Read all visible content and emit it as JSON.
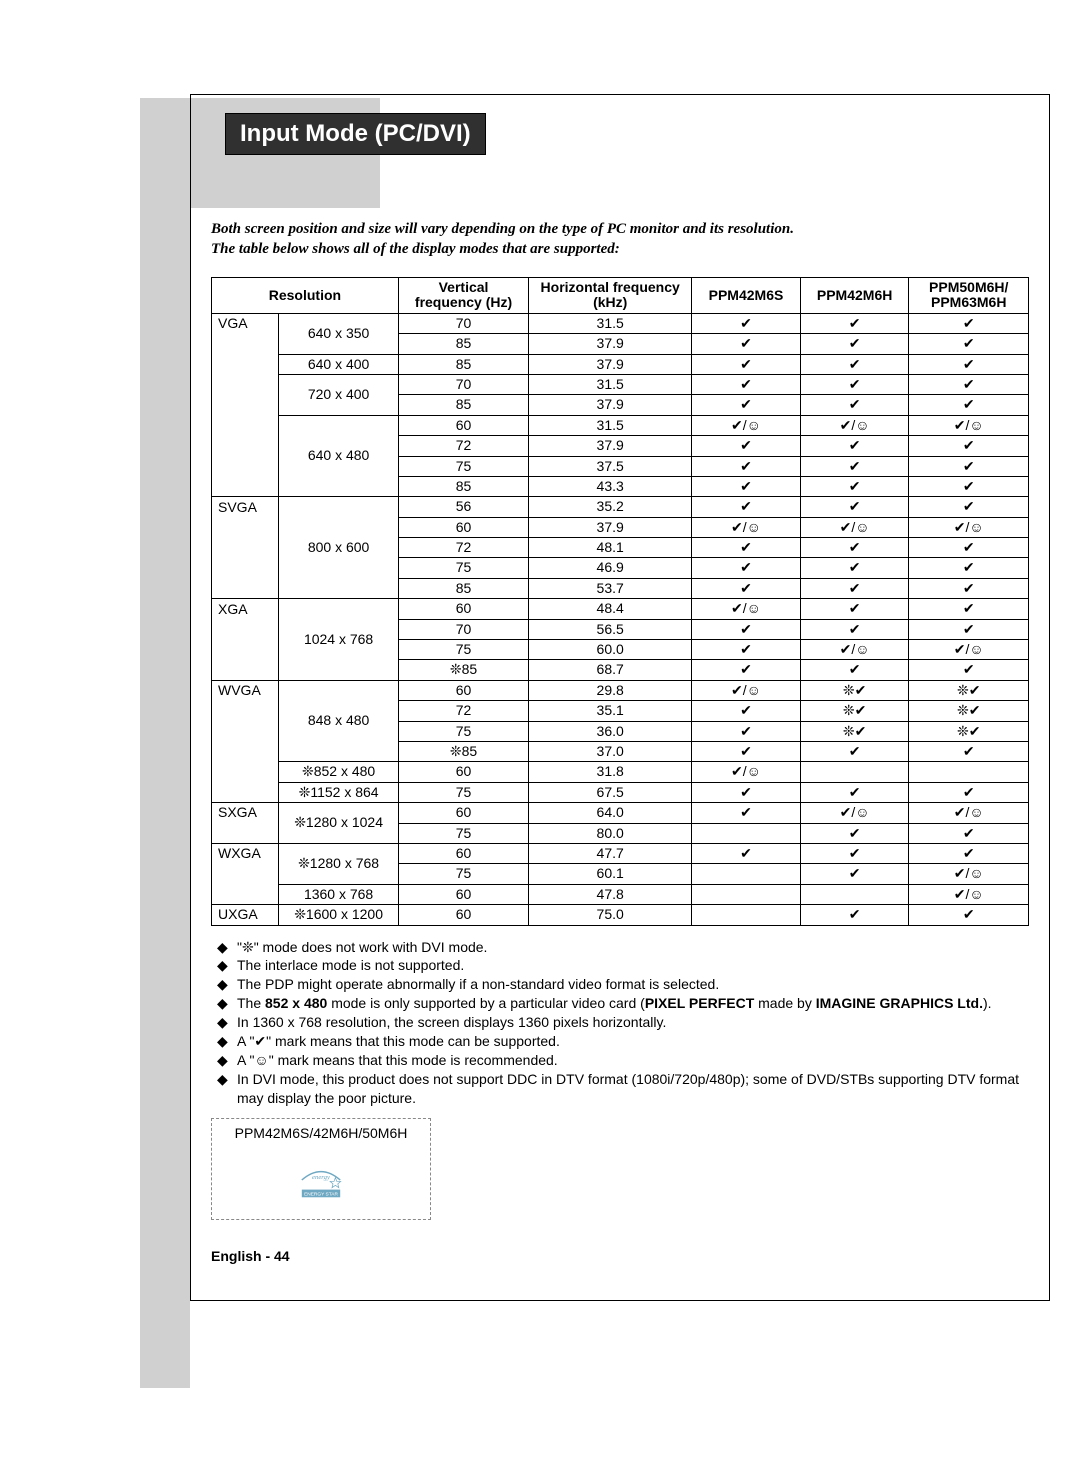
{
  "title": "Input Mode (PC/DVI)",
  "intro_l1": "Both screen position and size will vary depending on the type of PC monitor and its resolution.",
  "intro_l2": "The table below shows all of the display modes that are supported:",
  "headers": {
    "res": "Resolution",
    "vfreq": "Vertical frequency (Hz)",
    "hfreq": "Horizontal frequency (kHz)",
    "m1": "PPM42M6S",
    "m2": "PPM42M6H",
    "m3a": "PPM50M6H/",
    "m3b": "PPM63M6H"
  },
  "groups": [
    {
      "label": "VGA",
      "res": "640 x 350",
      "rows": [
        {
          "v": "70",
          "h": "31.5",
          "a": "c",
          "b": "c",
          "c": "c"
        },
        {
          "v": "85",
          "h": "37.9",
          "a": "c",
          "b": "c",
          "c": "c"
        }
      ]
    },
    {
      "label": "",
      "res": "640 x 400",
      "rows": [
        {
          "v": "85",
          "h": "37.9",
          "a": "c",
          "b": "c",
          "c": "c"
        }
      ]
    },
    {
      "label": "",
      "res": "720 x 400",
      "rows": [
        {
          "v": "70",
          "h": "31.5",
          "a": "c",
          "b": "c",
          "c": "c"
        },
        {
          "v": "85",
          "h": "37.9",
          "a": "c",
          "b": "c",
          "c": "c"
        }
      ]
    },
    {
      "label": "",
      "res": "640 x 480",
      "rows": [
        {
          "v": "60",
          "h": "31.5",
          "a": "cs",
          "b": "cs",
          "c": "cs"
        },
        {
          "v": "72",
          "h": "37.9",
          "a": "c",
          "b": "c",
          "c": "c"
        },
        {
          "v": "75",
          "h": "37.5",
          "a": "c",
          "b": "c",
          "c": "c"
        },
        {
          "v": "85",
          "h": "43.3",
          "a": "c",
          "b": "c",
          "c": "c"
        }
      ]
    },
    {
      "label": "SVGA",
      "res": "800 x 600",
      "rows": [
        {
          "v": "56",
          "h": "35.2",
          "a": "c",
          "b": "c",
          "c": "c"
        },
        {
          "v": "60",
          "h": "37.9",
          "a": "cs",
          "b": "cs",
          "c": "cs"
        },
        {
          "v": "72",
          "h": "48.1",
          "a": "c",
          "b": "c",
          "c": "c"
        },
        {
          "v": "75",
          "h": "46.9",
          "a": "c",
          "b": "c",
          "c": "c"
        },
        {
          "v": "85",
          "h": "53.7",
          "a": "c",
          "b": "c",
          "c": "c"
        }
      ]
    },
    {
      "label": "XGA",
      "res": "1024 x 768",
      "rows": [
        {
          "v": "60",
          "h": "48.4",
          "a": "cs",
          "b": "c",
          "c": "c"
        },
        {
          "v": "70",
          "h": "56.5",
          "a": "c",
          "b": "c",
          "c": "c"
        },
        {
          "v": "75",
          "h": "60.0",
          "a": "c",
          "b": "cs",
          "c": "cs"
        },
        {
          "v": "❊85",
          "h": "68.7",
          "a": "c",
          "b": "c",
          "c": "c"
        }
      ]
    },
    {
      "label": "WVGA",
      "res": "848 x 480",
      "rows": [
        {
          "v": "60",
          "h": "29.8",
          "a": "cs",
          "b": "xc",
          "c": "xc"
        },
        {
          "v": "72",
          "h": "35.1",
          "a": "c",
          "b": "xc",
          "c": "xc"
        },
        {
          "v": "75",
          "h": "36.0",
          "a": "c",
          "b": "xc",
          "c": "xc"
        },
        {
          "v": "❊85",
          "h": "37.0",
          "a": "c",
          "b": "c",
          "c": "c"
        }
      ]
    },
    {
      "label": "",
      "res": "❊852 x 480",
      "rows": [
        {
          "v": "60",
          "h": "31.8",
          "a": "cs",
          "b": "",
          "c": ""
        }
      ]
    },
    {
      "label": "",
      "res": "❊1152 x 864",
      "rows": [
        {
          "v": "75",
          "h": "67.5",
          "a": "c",
          "b": "c",
          "c": "c"
        }
      ]
    },
    {
      "label": "SXGA",
      "res": "❊1280 x 1024",
      "rows": [
        {
          "v": "60",
          "h": "64.0",
          "a": "c",
          "b": "cs",
          "c": "cs"
        },
        {
          "v": "75",
          "h": "80.0",
          "a": "",
          "b": "c",
          "c": "c"
        }
      ]
    },
    {
      "label": "WXGA",
      "res": "❊1280 x 768",
      "rows": [
        {
          "v": "60",
          "h": "47.7",
          "a": "c",
          "b": "c",
          "c": "c"
        },
        {
          "v": "75",
          "h": "60.1",
          "a": "",
          "b": "c",
          "c": "cs"
        }
      ]
    },
    {
      "label": "",
      "res": "1360 x 768",
      "rows": [
        {
          "v": "60",
          "h": "47.8",
          "a": "",
          "b": "",
          "c": "cs"
        }
      ]
    },
    {
      "label": "UXGA",
      "res": "❊1600 x 1200",
      "rows": [
        {
          "v": "60",
          "h": "75.0",
          "a": "",
          "b": "c",
          "c": "c"
        }
      ]
    }
  ],
  "section_borders": {
    "VGA": true,
    "SVGA": true,
    "XGA": true,
    "WVGA": true,
    "SXGA": true,
    "WXGA": true,
    "UXGA": true
  },
  "syms": {
    "c": "✔",
    "cs": "✔/☺",
    "xc": "❊✔",
    "": ""
  },
  "notes": [
    "\"❊\" mode does not work with DVI mode.",
    "The interlace mode is not supported.",
    "The PDP might operate abnormally if a non-standard video format is selected.",
    "The <b>852 x 480</b> mode is only supported by a particular video card (<b>PIXEL PERFECT</b> made by <b>IMAGINE GRAPHICS Ltd.</b>).",
    "In 1360 x 768 resolution, the screen displays 1360 pixels horizontally.",
    "A \"✔\" mark means that this mode can be supported.",
    "A \"☺\" mark means that this mode is recommended.",
    "In DVI mode, this product does not support DDC in DTV format (1080i/720p/480p); some of DVD/STBs supporting DTV format may display the poor picture."
  ],
  "energy_label": "PPM42M6S/42M6H/50M6H",
  "energy_text": "ENERGY STAR",
  "footer": "English - 44",
  "colors": {
    "title_bg": "#303030",
    "title_fg": "#ffffff",
    "lshape": "#d0d0d0",
    "estar": "#6fa8c2"
  }
}
